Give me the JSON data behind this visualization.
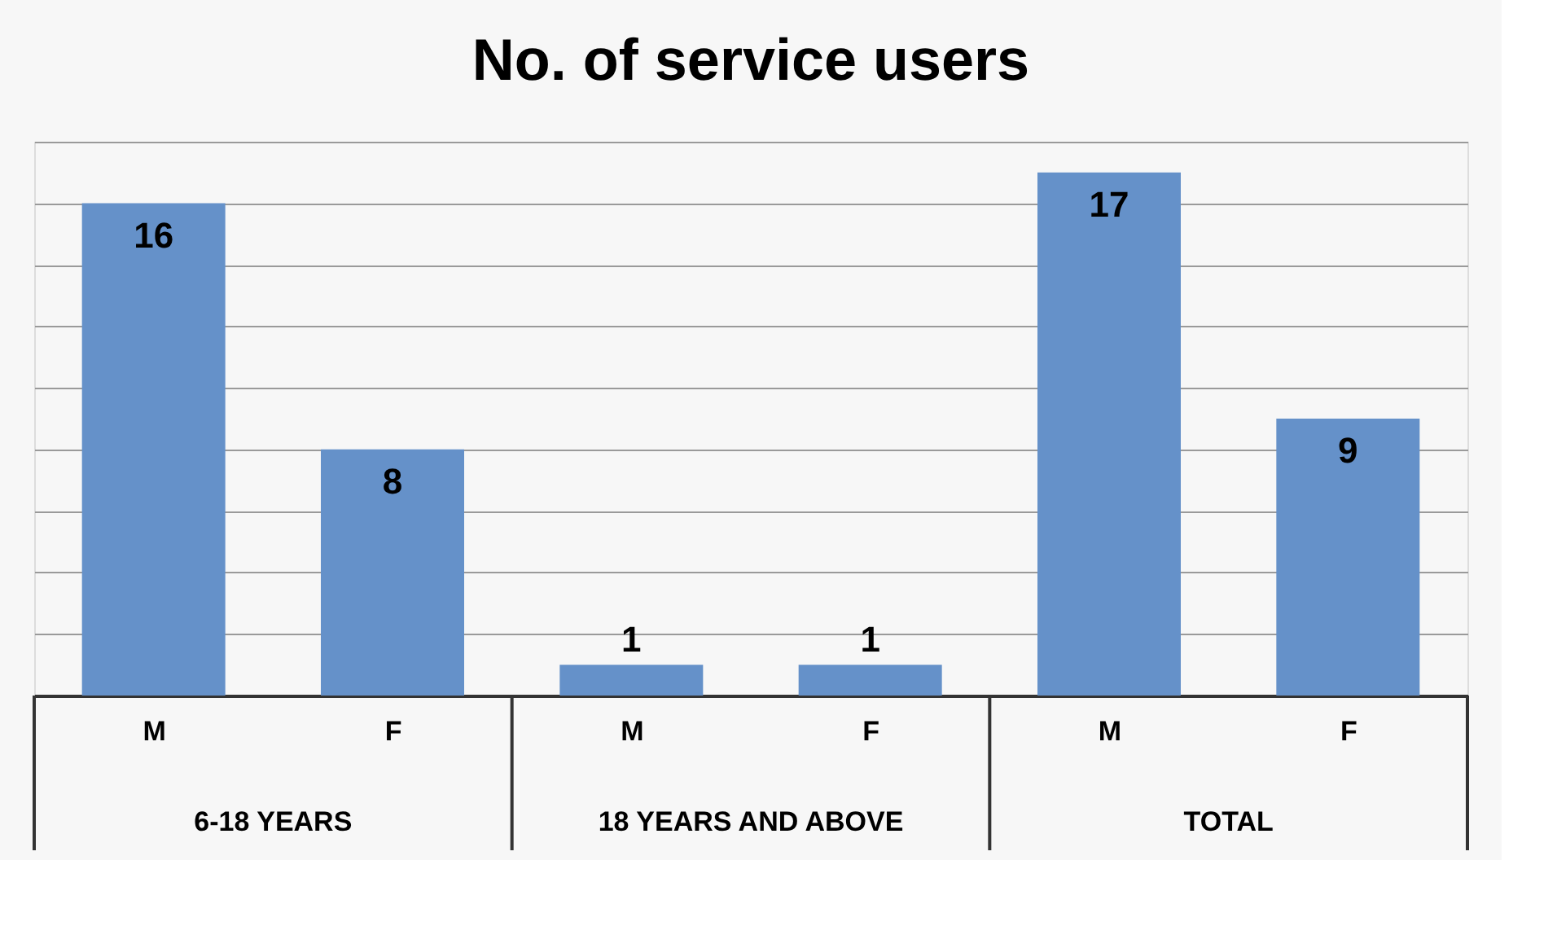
{
  "chart_data": {
    "type": "bar",
    "title": "No. of service users",
    "categories": [
      "M",
      "F",
      "M",
      "F",
      "M",
      "F"
    ],
    "values": [
      16,
      8,
      1,
      1,
      17,
      9
    ],
    "color": "#6591c9",
    "data_labels": true,
    "grid": "y",
    "tick_labels": "x",
    "annotations": [
      "6-18 YEARS",
      "18 YEARS AND  ABOVE",
      "TOTAL"
    ]
  }
}
